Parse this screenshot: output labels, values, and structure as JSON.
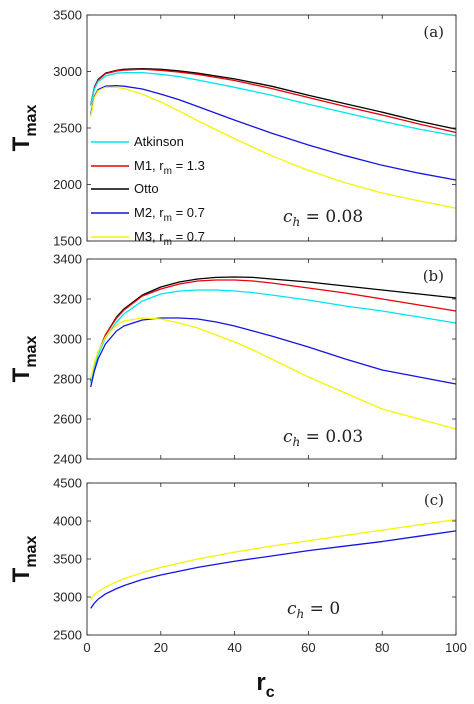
{
  "chart_data": [
    {
      "type": "line",
      "panel_label": "(a)",
      "ylabel": "T",
      "ylabel_sub": "max",
      "annotation": {
        "symbol": "c",
        "sub": "h",
        "text": " = 0.08"
      },
      "xlim": [
        0,
        100
      ],
      "ylim": [
        1500,
        3500
      ],
      "yticks": [
        "1500",
        "2000",
        "2500",
        "3000",
        "3500"
      ],
      "legend": {
        "placement": "bottom-left",
        "entries": [
          {
            "label": "Atkinson",
            "color": "#00e5ee"
          },
          {
            "label": "M1, r",
            "sub": "m",
            "suffix": " = 1.3",
            "color": "#e8000b"
          },
          {
            "label": "Otto",
            "color": "#000000"
          },
          {
            "label": "M2, r",
            "sub": "m",
            "suffix": " = 0.7",
            "color": "#1414e6"
          },
          {
            "label": "M3, r",
            "sub": "m",
            "suffix": " = 0.7",
            "color": "#f5f500"
          }
        ]
      },
      "series": [
        {
          "color": "#000000",
          "x": [
            1,
            2,
            3,
            5,
            8,
            10,
            15,
            20,
            25,
            30,
            40,
            50,
            60,
            70,
            80,
            90,
            100
          ],
          "y": [
            2700,
            2860,
            2930,
            2985,
            3010,
            3020,
            3025,
            3020,
            3005,
            2985,
            2935,
            2870,
            2790,
            2715,
            2640,
            2560,
            2490
          ]
        },
        {
          "color": "#e8000b",
          "x": [
            1,
            2,
            3,
            5,
            8,
            10,
            15,
            20,
            25,
            30,
            40,
            50,
            60,
            70,
            80,
            90,
            100
          ],
          "y": [
            2700,
            2855,
            2925,
            2980,
            3005,
            3012,
            3020,
            3010,
            2995,
            2975,
            2920,
            2850,
            2770,
            2690,
            2615,
            2535,
            2460
          ]
        },
        {
          "color": "#00e5ee",
          "x": [
            1,
            2,
            3,
            5,
            8,
            10,
            15,
            20,
            25,
            30,
            40,
            50,
            60,
            70,
            80,
            90,
            100
          ],
          "y": [
            2700,
            2845,
            2910,
            2960,
            2985,
            2990,
            2990,
            2975,
            2955,
            2925,
            2860,
            2790,
            2710,
            2635,
            2560,
            2490,
            2430
          ]
        },
        {
          "color": "#1414e6",
          "x": [
            1,
            2,
            3,
            5,
            8,
            10,
            15,
            20,
            25,
            30,
            40,
            50,
            60,
            70,
            80,
            90,
            100
          ],
          "y": [
            2620,
            2780,
            2840,
            2870,
            2875,
            2870,
            2845,
            2800,
            2750,
            2690,
            2570,
            2455,
            2350,
            2255,
            2170,
            2100,
            2040
          ]
        },
        {
          "color": "#f5f500",
          "x": [
            1,
            2,
            3,
            5,
            8,
            10,
            15,
            20,
            25,
            30,
            40,
            50,
            60,
            70,
            80,
            90,
            100
          ],
          "y": [
            2600,
            2770,
            2830,
            2860,
            2860,
            2850,
            2800,
            2730,
            2650,
            2565,
            2405,
            2255,
            2125,
            2015,
            1925,
            1855,
            1790
          ]
        }
      ]
    },
    {
      "type": "line",
      "panel_label": "(b)",
      "ylabel": "T",
      "ylabel_sub": "max",
      "annotation": {
        "symbol": "c",
        "sub": "h",
        "text": " = 0.03"
      },
      "xlim": [
        0,
        100
      ],
      "ylim": [
        2400,
        3400
      ],
      "yticks": [
        "2400",
        "2600",
        "2800",
        "3000",
        "3200",
        "3400"
      ],
      "series": [
        {
          "color": "#000000",
          "x": [
            1,
            2,
            3,
            5,
            8,
            10,
            15,
            20,
            25,
            30,
            35,
            40,
            45,
            50,
            60,
            70,
            80,
            90,
            100
          ],
          "y": [
            2790,
            2870,
            2930,
            3020,
            3110,
            3150,
            3220,
            3260,
            3285,
            3300,
            3308,
            3310,
            3308,
            3300,
            3285,
            3265,
            3245,
            3225,
            3205
          ]
        },
        {
          "color": "#e8000b",
          "x": [
            1,
            2,
            3,
            5,
            8,
            10,
            15,
            20,
            25,
            30,
            35,
            40,
            45,
            50,
            60,
            70,
            80,
            90,
            100
          ],
          "y": [
            2790,
            2870,
            2930,
            3020,
            3105,
            3145,
            3215,
            3250,
            3275,
            3290,
            3295,
            3295,
            3290,
            3280,
            3255,
            3230,
            3200,
            3170,
            3140
          ]
        },
        {
          "color": "#00e5ee",
          "x": [
            1,
            2,
            3,
            5,
            8,
            10,
            15,
            20,
            25,
            30,
            35,
            40,
            45,
            50,
            60,
            70,
            80,
            90,
            100
          ],
          "y": [
            2780,
            2860,
            2920,
            3005,
            3085,
            3125,
            3190,
            3225,
            3240,
            3245,
            3245,
            3240,
            3232,
            3220,
            3195,
            3165,
            3140,
            3110,
            3080
          ]
        },
        {
          "color": "#1414e6",
          "x": [
            1,
            2,
            3,
            5,
            8,
            10,
            15,
            20,
            25,
            30,
            35,
            40,
            45,
            50,
            60,
            70,
            80,
            90,
            100
          ],
          "y": [
            2760,
            2840,
            2900,
            2975,
            3040,
            3065,
            3095,
            3105,
            3105,
            3100,
            3085,
            3065,
            3040,
            3015,
            2960,
            2900,
            2845,
            2810,
            2775
          ]
        },
        {
          "color": "#f5f500",
          "x": [
            1,
            2,
            3,
            5,
            8,
            10,
            15,
            20,
            25,
            30,
            35,
            40,
            45,
            50,
            60,
            70,
            80,
            90,
            100
          ],
          "y": [
            2800,
            2880,
            2935,
            3010,
            3070,
            3090,
            3105,
            3100,
            3080,
            3055,
            3020,
            2985,
            2945,
            2900,
            2810,
            2730,
            2650,
            2600,
            2550
          ]
        }
      ]
    },
    {
      "type": "line",
      "panel_label": "(c)",
      "ylabel": "T",
      "ylabel_sub": "max",
      "xlabel": "r",
      "xlabel_sub": "c",
      "annotation": {
        "symbol": "c",
        "sub": "h",
        "text": " = 0"
      },
      "xlim": [
        0,
        100
      ],
      "ylim": [
        2500,
        4500
      ],
      "xticks": [
        "0",
        "20",
        "40",
        "60",
        "80",
        "100"
      ],
      "yticks": [
        "2500",
        "3000",
        "3500",
        "4000",
        "4500"
      ],
      "series": [
        {
          "color": "#f5f500",
          "x": [
            1,
            2,
            3,
            5,
            8,
            10,
            15,
            20,
            30,
            40,
            50,
            60,
            70,
            80,
            90,
            100
          ],
          "y": [
            2970,
            3030,
            3070,
            3130,
            3200,
            3240,
            3320,
            3390,
            3500,
            3590,
            3670,
            3740,
            3810,
            3880,
            3950,
            4020
          ]
        },
        {
          "color": "#1414e6",
          "x": [
            1,
            2,
            3,
            5,
            8,
            10,
            15,
            20,
            30,
            40,
            50,
            60,
            70,
            80,
            90,
            100
          ],
          "y": [
            2850,
            2920,
            2970,
            3040,
            3110,
            3150,
            3230,
            3290,
            3390,
            3470,
            3540,
            3610,
            3670,
            3730,
            3800,
            3870
          ]
        }
      ]
    }
  ]
}
